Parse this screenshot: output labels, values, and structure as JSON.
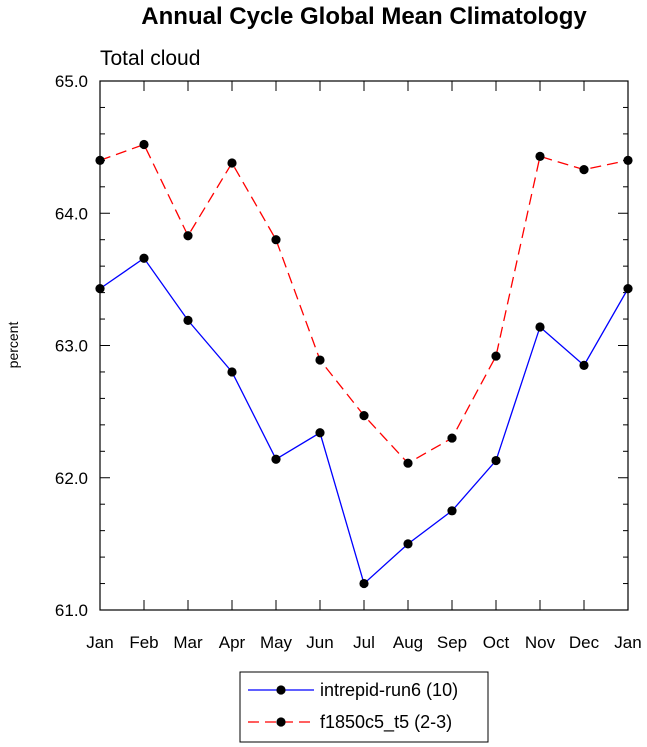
{
  "chart_data": {
    "type": "line",
    "title": "Annual Cycle Global Mean Climatology",
    "subtitle": "Total cloud",
    "xlabel": "",
    "ylabel": "percent",
    "categories": [
      "Jan",
      "Feb",
      "Mar",
      "Apr",
      "May",
      "Jun",
      "Jul",
      "Aug",
      "Sep",
      "Oct",
      "Nov",
      "Dec",
      "Jan"
    ],
    "ylim": [
      61.0,
      65.0
    ],
    "yticks": [
      "61.0",
      "62.0",
      "63.0",
      "64.0",
      "65.0"
    ],
    "grid": false,
    "legend_position": "bottom-center",
    "series": [
      {
        "name": "intrepid-run6 (10)",
        "color": "#0000ff",
        "dash": "solid",
        "marker": "filled-circle",
        "values": [
          63.43,
          63.66,
          63.19,
          62.8,
          62.14,
          62.34,
          61.2,
          61.5,
          61.75,
          62.13,
          63.14,
          62.85,
          63.43
        ]
      },
      {
        "name": "f1850c5_t5 (2-3)",
        "color": "#ff0000",
        "dash": "dashed",
        "marker": "filled-circle",
        "values": [
          64.4,
          64.52,
          63.83,
          64.38,
          63.8,
          62.89,
          62.47,
          62.11,
          62.3,
          62.92,
          64.43,
          64.33,
          64.4
        ]
      }
    ]
  }
}
